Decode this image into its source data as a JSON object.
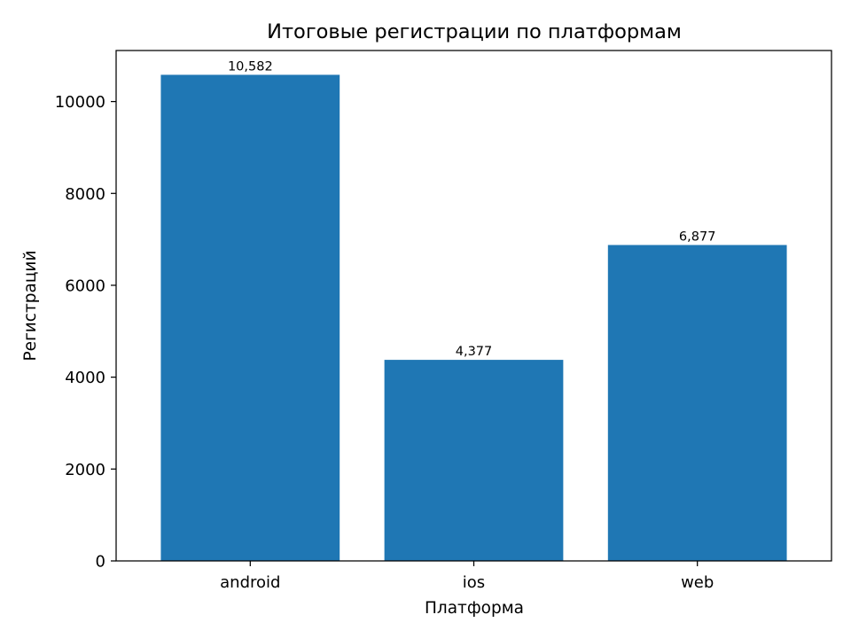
{
  "chart_data": {
    "type": "bar",
    "title": "Итоговые регистрации по платформам",
    "xlabel": "Платформа",
    "ylabel": "Регистраций",
    "categories": [
      "android",
      "ios",
      "web"
    ],
    "values": [
      10582,
      4377,
      6877
    ],
    "data_labels": [
      "10,582",
      "4,377",
      "6,877"
    ],
    "ylim": [
      0,
      11111
    ],
    "yticks": [
      0,
      2000,
      4000,
      6000,
      8000,
      10000
    ],
    "ytick_labels": [
      "0",
      "2000",
      "4000",
      "6000",
      "8000",
      "10000"
    ],
    "bar_color": "#1f77b4",
    "grid": false,
    "legend": "none"
  }
}
